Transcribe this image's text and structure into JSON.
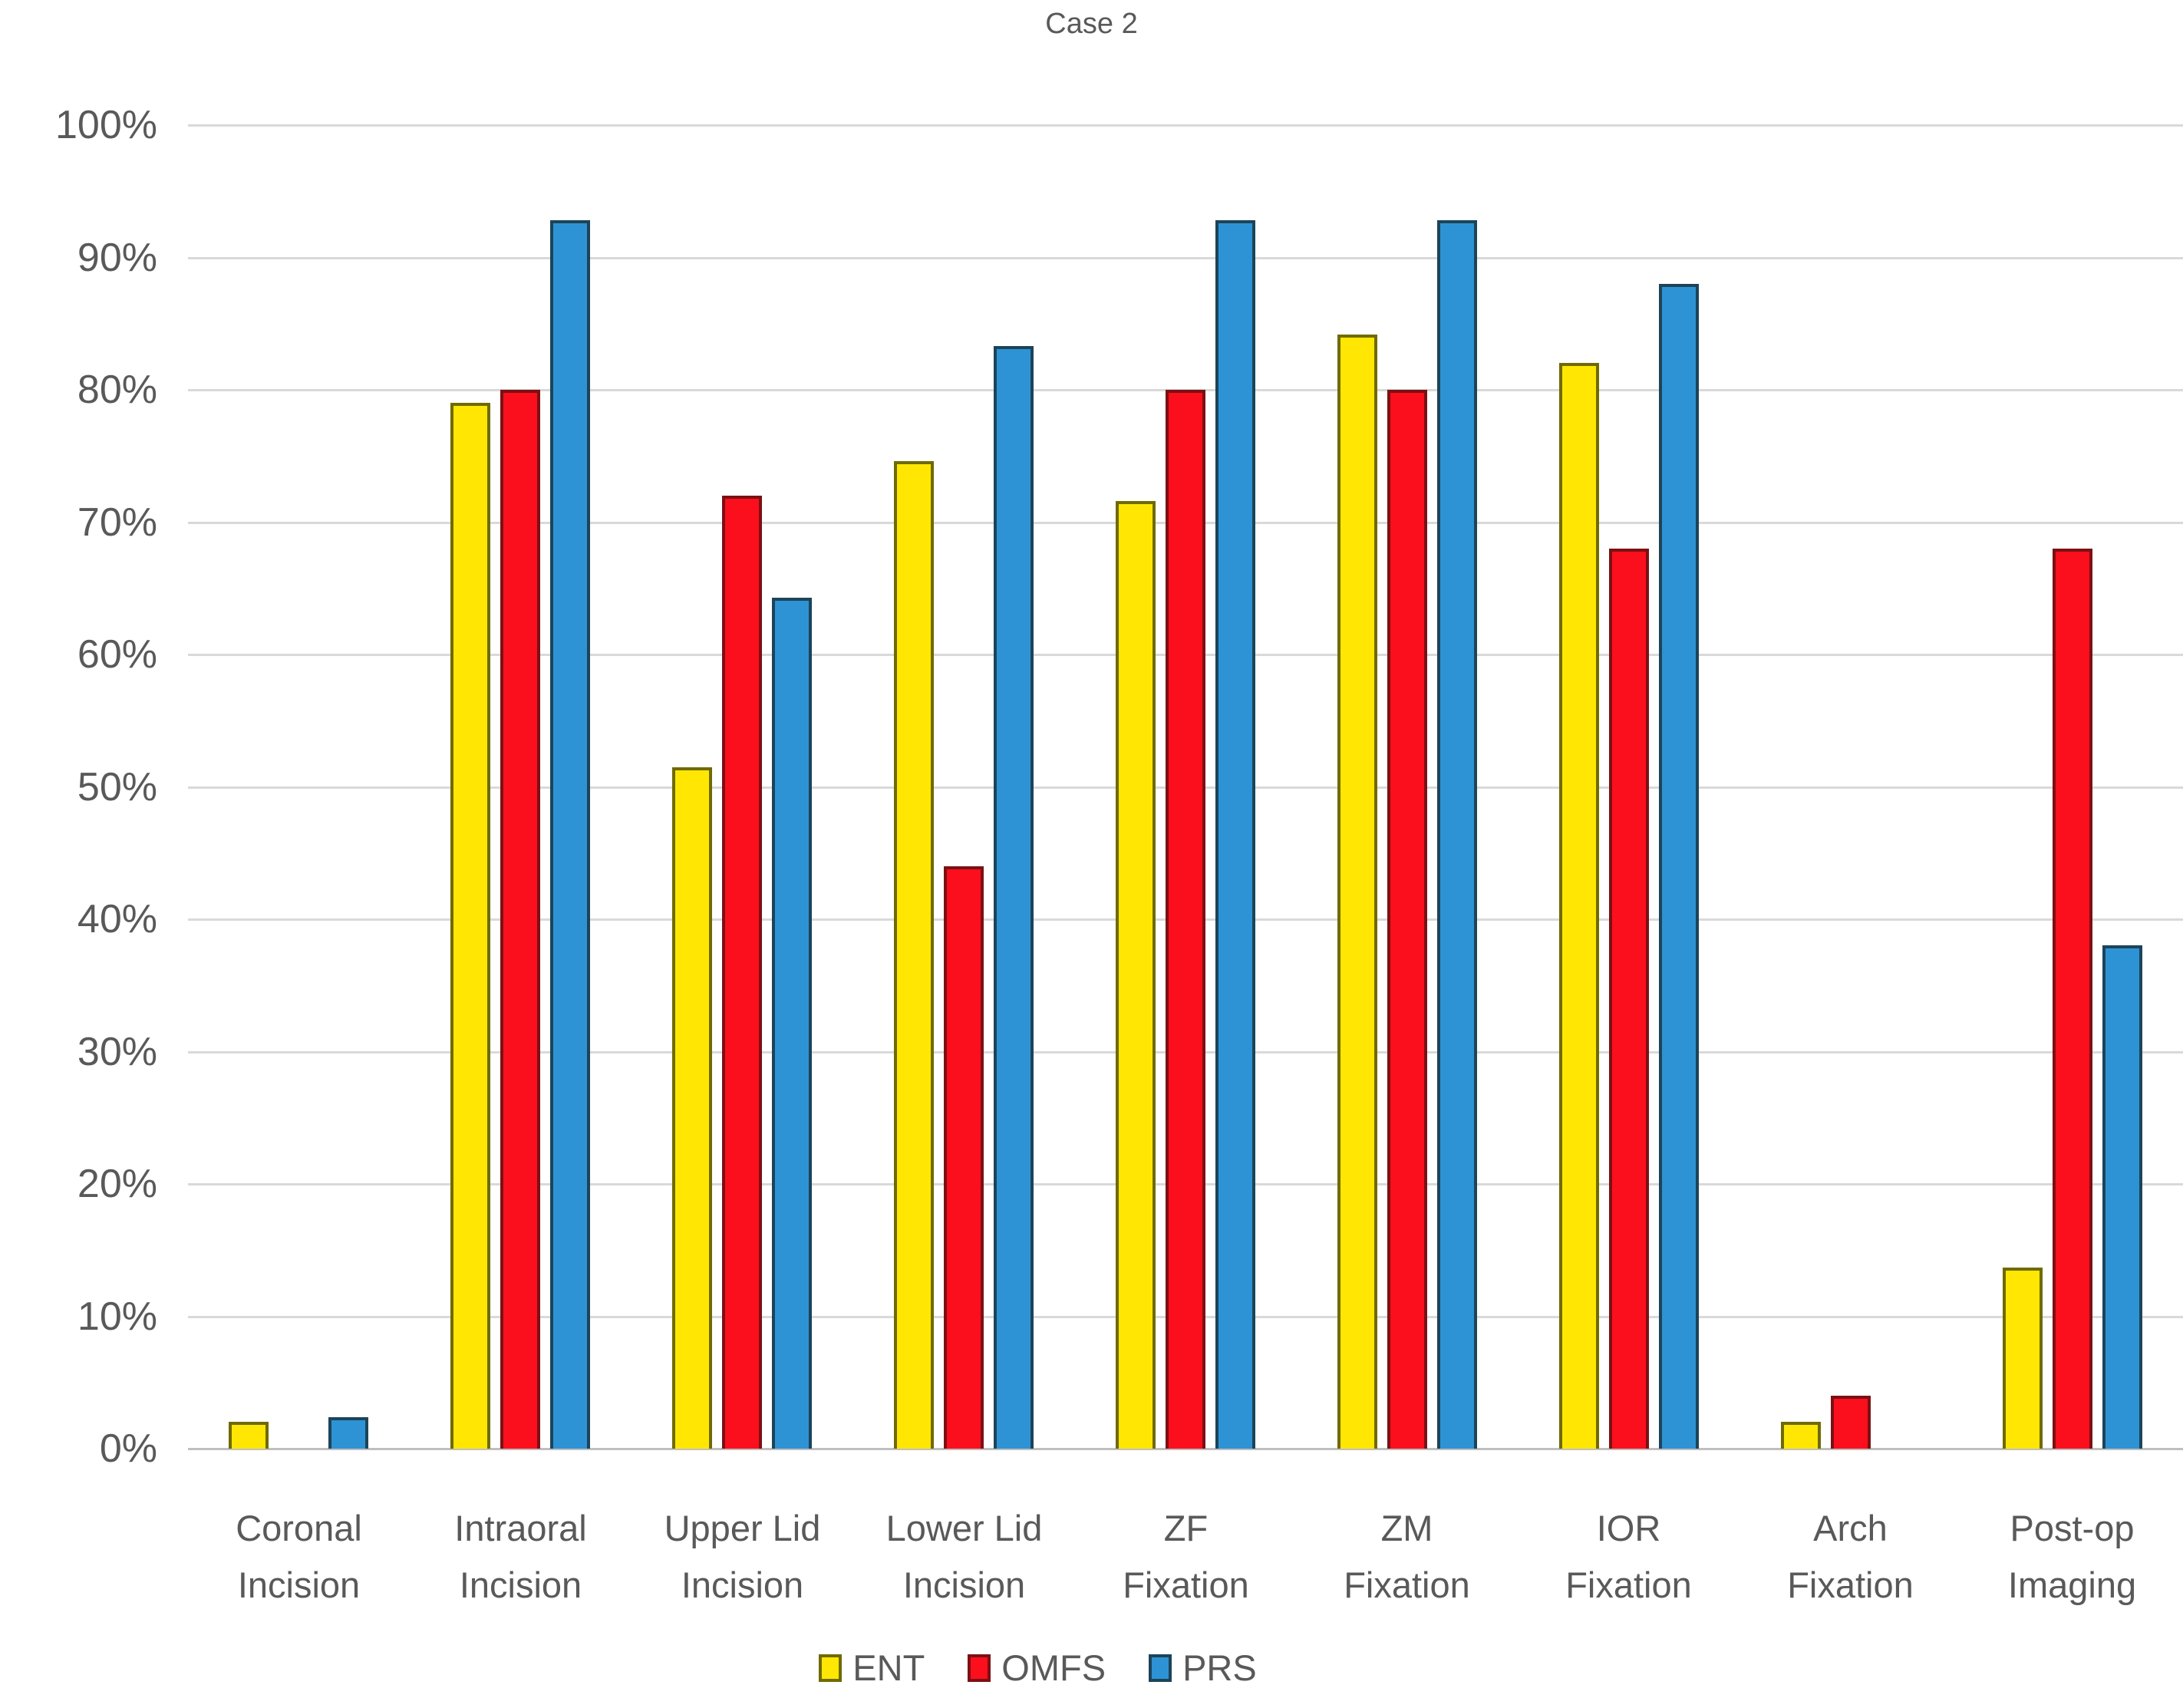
{
  "chart_data": {
    "type": "bar",
    "title": "Case 2",
    "categories": [
      "Coronal Incision",
      "Intraoral Incision",
      "Upper Lid Incision",
      "Lower Lid Incision",
      "ZF Fixation",
      "ZM Fixation",
      "IOR Fixation",
      "Arch Fixation",
      "Post-op Imaging"
    ],
    "category_label_lines": [
      [
        "Coronal",
        "Incision"
      ],
      [
        "Intraoral",
        "Incision"
      ],
      [
        "Upper Lid",
        "Incision"
      ],
      [
        "Lower Lid",
        "Incision"
      ],
      [
        "ZF",
        "Fixation"
      ],
      [
        "ZM",
        "Fixation"
      ],
      [
        "IOR",
        "Fixation"
      ],
      [
        "Arch",
        "Fixation"
      ],
      [
        "Post-op",
        "Imaging"
      ]
    ],
    "series": [
      {
        "name": "ENT",
        "color": "#FFE703",
        "border_color": "#6F6A00",
        "values": [
          2,
          79,
          51.5,
          74.6,
          71.6,
          84.2,
          82,
          2,
          13.7
        ]
      },
      {
        "name": "OMFS",
        "color": "#FC0F1C",
        "border_color": "#7C1013",
        "values": [
          0,
          80,
          72,
          44,
          80,
          80,
          68,
          4,
          68
        ]
      },
      {
        "name": "PRS",
        "color": "#2E93D4",
        "border_color": "#1C4459",
        "values": [
          2.4,
          92.8,
          64.3,
          83.3,
          92.8,
          92.8,
          88,
          0,
          38
        ]
      }
    ],
    "yticks": [
      "0%",
      "10%",
      "20%",
      "30%",
      "40%",
      "50%",
      "60%",
      "70%",
      "80%",
      "90%",
      "100%"
    ],
    "ylim": [
      0,
      100
    ],
    "grid": true,
    "legend_position": "bottom"
  },
  "colors": {
    "text": "#595959",
    "gridline": "#D9D9D9",
    "axis_line": "#BFBFBF",
    "background": "#FFFFFF"
  }
}
